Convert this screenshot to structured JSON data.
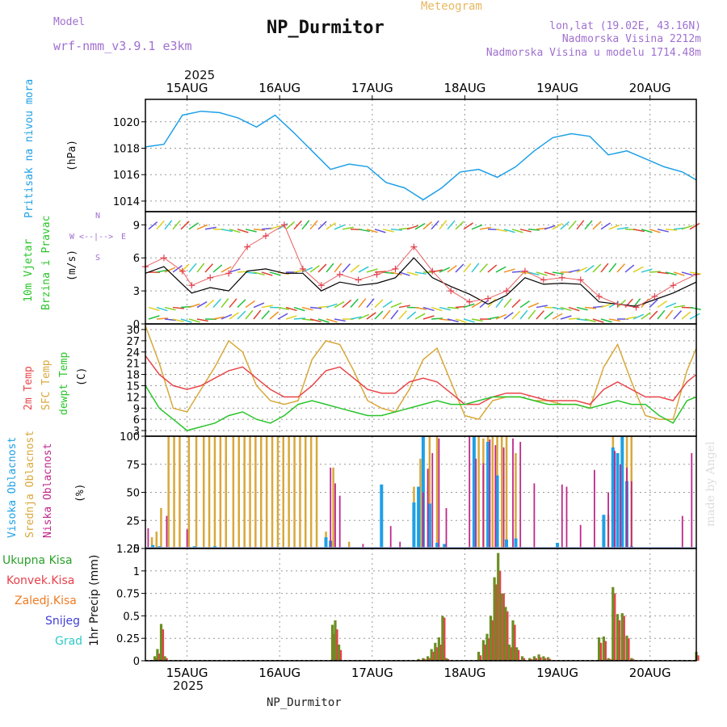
{
  "header": {
    "model_label": "Model",
    "model_name": "wrf-nmm_v3.9.1 e3km",
    "title": "NP_Durmitor",
    "meteogram": "Meteogram",
    "lonlat": "lon,lat (19.02E, 43.16N)",
    "altitude": "Nadmorska Visina 2212m",
    "model_altitude": "Nadmorska Visina u modelu 1714.48m",
    "year": "2025",
    "footer": "NP_Durmitor",
    "watermark": "made by Angel"
  },
  "colors": {
    "pressure": "#1ea0e6",
    "temp2m": "#e8454a",
    "sfc": "#d8a83a",
    "dewpt": "#2ac42a",
    "ukupna": "#2aa02a",
    "konvek": "#e8404a",
    "zaledj": "#f07a20",
    "snijeg": "#4040d8",
    "grad": "#30c8c8",
    "visoka": "#1ea0e6",
    "srednja": "#d8a83a",
    "niska": "#c0288a",
    "wind_legend": "#a070d0"
  },
  "chart_data": [
    {
      "id": "pressure",
      "type": "line",
      "ylabel": "Pritisak na nivou mora",
      "unit": "(hPa)",
      "ylim": [
        1013.2,
        1021.7
      ],
      "yticks": [
        1014,
        1016,
        1018,
        1020
      ],
      "x_range_days": [
        14.55,
        20.5
      ],
      "x": [
        14.55,
        14.75,
        14.95,
        15.15,
        15.35,
        15.55,
        15.75,
        15.95,
        16.15,
        16.35,
        16.55,
        16.75,
        16.95,
        17.15,
        17.35,
        17.55,
        17.75,
        17.95,
        18.15,
        18.35,
        18.55,
        18.75,
        18.95,
        19.15,
        19.35,
        19.55,
        19.75,
        19.95,
        20.15,
        20.35,
        20.5
      ],
      "series": [
        {
          "name": "Pressure",
          "values": [
            1018.1,
            1018.3,
            1020.5,
            1020.8,
            1020.7,
            1020.3,
            1019.6,
            1020.5,
            1019.2,
            1017.8,
            1016.4,
            1016.8,
            1016.6,
            1015.4,
            1015.0,
            1014.1,
            1015.0,
            1016.2,
            1016.4,
            1015.8,
            1016.6,
            1017.8,
            1018.8,
            1019.1,
            1018.9,
            1017.5,
            1017.8,
            1017.2,
            1016.6,
            1016.2,
            1015.6
          ]
        }
      ]
    },
    {
      "id": "wind",
      "type": "line",
      "ylabel": "10m Vjetar",
      "ylabel2": "Brzina i Pravac",
      "unit": "(m/s)",
      "compass": {
        "n": "N",
        "s": "S",
        "w": "W",
        "e": "E"
      },
      "ylim": [
        0,
        10.2
      ],
      "yticks": [
        0,
        3,
        6,
        9
      ],
      "x": [
        14.55,
        14.75,
        14.95,
        15.05,
        15.25,
        15.45,
        15.65,
        15.85,
        16.05,
        16.25,
        16.45,
        16.65,
        16.85,
        17.05,
        17.25,
        17.45,
        17.65,
        17.85,
        18.05,
        18.25,
        18.45,
        18.65,
        18.85,
        19.05,
        19.25,
        19.45,
        19.65,
        19.85,
        20.05,
        20.25,
        20.5
      ],
      "series": [
        {
          "name": "Mean wind",
          "values": [
            4.6,
            5.2,
            3.6,
            2.8,
            3.3,
            3.0,
            4.8,
            5.0,
            4.6,
            4.6,
            3.0,
            3.8,
            3.5,
            3.7,
            4.2,
            6.0,
            4.2,
            3.4,
            2.7,
            1.8,
            2.6,
            4.2,
            3.6,
            3.7,
            3.6,
            2.0,
            1.8,
            1.6,
            2.2,
            2.8,
            3.8
          ]
        },
        {
          "name": "Gusts",
          "values": [
            5.2,
            6.0,
            4.8,
            3.5,
            4.2,
            4.6,
            7.0,
            8.0,
            9.0,
            5.0,
            3.5,
            4.5,
            4.0,
            4.5,
            5.0,
            7.0,
            4.8,
            3.0,
            2.0,
            2.3,
            3.0,
            4.8,
            4.0,
            4.2,
            4.0,
            2.5,
            1.8,
            1.5,
            2.5,
            3.5,
            4.5
          ]
        }
      ],
      "levels_ms": [
        0,
        1.5,
        4.7,
        8.6
      ]
    },
    {
      "id": "temperature",
      "type": "line",
      "ylabel": "2m Temp",
      "ylabel2": "SFC Temp",
      "ylabel3": "dewpt Temp",
      "unit": "(C)",
      "ylim": [
        1.5,
        31.5
      ],
      "yticks": [
        3,
        6,
        9,
        12,
        15,
        18,
        21,
        24,
        27,
        30
      ],
      "x": [
        14.55,
        14.7,
        14.85,
        15.0,
        15.15,
        15.3,
        15.45,
        15.6,
        15.75,
        15.9,
        16.05,
        16.2,
        16.35,
        16.5,
        16.65,
        16.8,
        16.95,
        17.1,
        17.25,
        17.4,
        17.55,
        17.7,
        17.85,
        18.0,
        18.15,
        18.3,
        18.45,
        18.6,
        18.75,
        18.9,
        19.05,
        19.2,
        19.35,
        19.5,
        19.65,
        19.8,
        19.95,
        20.1,
        20.25,
        20.4,
        20.5
      ],
      "series": [
        {
          "name": "2m Temp",
          "values": [
            23,
            18,
            15,
            14,
            15,
            17,
            19,
            20,
            17,
            14,
            12,
            12,
            15,
            19,
            20,
            17,
            14,
            13,
            13,
            16,
            17,
            16,
            13,
            10,
            10,
            12,
            13,
            13,
            12,
            11,
            11,
            11,
            10,
            14,
            16,
            14,
            12,
            12,
            11,
            16,
            18
          ]
        },
        {
          "name": "SFC Temp",
          "values": [
            31,
            21,
            9,
            8,
            14,
            20,
            27,
            24,
            15,
            11,
            10,
            11,
            22,
            27,
            26,
            19,
            11,
            9,
            8,
            14,
            22,
            25,
            16,
            7,
            6,
            11,
            12,
            12,
            11,
            11,
            10,
            10,
            9,
            20,
            26,
            16,
            7,
            6,
            6,
            19,
            25
          ]
        },
        {
          "name": "dewpt Temp",
          "values": [
            15,
            9,
            6,
            3,
            4,
            5,
            7,
            8,
            6,
            5,
            7,
            10,
            11,
            10,
            9,
            8,
            7,
            7,
            8,
            9,
            10,
            11,
            10,
            10,
            11,
            12,
            12,
            12,
            11,
            10,
            10,
            10,
            9,
            10,
            11,
            10,
            10,
            7,
            5,
            11,
            12
          ]
        }
      ]
    },
    {
      "id": "clouds",
      "type": "bar",
      "ylabel": "Visoka Oblacnost",
      "ylabel2": "Srednja Oblacnost",
      "ylabel3": "Niska Oblacnost",
      "unit": "(%)",
      "ylim": [
        0,
        100
      ],
      "yticks": [
        0,
        25,
        50,
        75,
        100
      ],
      "series": [
        {
          "name": "Visoka",
          "x": [
            14.63,
            14.7,
            15.08,
            15.3,
            16.5,
            16.55,
            17.1,
            17.45,
            17.5,
            17.55,
            17.62,
            17.7,
            17.78,
            18.1,
            18.25,
            18.35,
            18.45,
            18.55,
            19.0,
            19.5,
            19.6,
            19.65,
            19.7,
            19.75,
            19.8
          ],
          "values": [
            3,
            2,
            2,
            2,
            10,
            7,
            57,
            41,
            55,
            100,
            40,
            5,
            4,
            100,
            95,
            65,
            8,
            9,
            5,
            30,
            90,
            85,
            100,
            60,
            2
          ]
        },
        {
          "name": "Srednja",
          "x": [
            14.62,
            14.67,
            14.72,
            14.8,
            14.86,
            14.92,
            15.02,
            15.1,
            15.18,
            15.24,
            15.3,
            15.36,
            15.42,
            15.5,
            15.56,
            15.62,
            15.68,
            15.74,
            15.8,
            15.86,
            15.92,
            15.98,
            16.04,
            16.1,
            16.16,
            16.22,
            16.28,
            16.34,
            16.4,
            16.5,
            16.58,
            16.75,
            17.45,
            17.52,
            17.62,
            17.7,
            18.1,
            18.15,
            18.2,
            18.25,
            18.3,
            18.35,
            18.4,
            18.45,
            18.55,
            19.55,
            19.6,
            19.7,
            19.75,
            19.8
          ],
          "values": [
            10,
            15,
            36,
            100,
            100,
            100,
            100,
            100,
            100,
            100,
            100,
            100,
            100,
            100,
            100,
            100,
            100,
            100,
            100,
            100,
            100,
            100,
            100,
            100,
            100,
            100,
            100,
            100,
            100,
            15,
            72,
            6,
            55,
            80,
            100,
            100,
            100,
            100,
            98,
            100,
            100,
            100,
            100,
            100,
            85,
            30,
            100,
            100,
            100,
            100
          ]
        },
        {
          "name": "Niska",
          "x": [
            14.58,
            14.78,
            15.0,
            16.55,
            16.6,
            16.65,
            16.9,
            17.2,
            17.3,
            17.55,
            17.6,
            17.65,
            17.72,
            17.8,
            18.05,
            18.12,
            18.2,
            18.27,
            18.33,
            18.42,
            18.52,
            18.6,
            18.75,
            19.05,
            19.1,
            19.25,
            19.4,
            19.55,
            19.62,
            19.68,
            19.75,
            19.8,
            20.35,
            20.45
          ],
          "values": [
            18,
            29,
            17,
            72,
            58,
            47,
            4,
            20,
            6,
            50,
            71,
            85,
            98,
            36,
            100,
            80,
            76,
            97,
            92,
            90,
            98,
            95,
            58,
            57,
            55,
            21,
            70,
            50,
            87,
            75,
            72,
            60,
            29,
            85
          ]
        }
      ]
    },
    {
      "id": "precip",
      "type": "bar",
      "ylabel": "1hr Precip (mm)",
      "legend": [
        "Ukupna Kisa",
        "Konvek.Kisa",
        "Zaledj.Kisa",
        "Snijeg",
        "Grad"
      ],
      "ylim": [
        0,
        1.25
      ],
      "yticks": [
        0,
        0.25,
        0.5,
        0.75,
        1,
        1.25
      ],
      "ytick_labels": [
        "0",
        "0.25",
        "0.5",
        "0.75",
        "1",
        "1.25"
      ],
      "x": [
        14.65,
        14.68,
        14.72,
        14.76,
        16.57,
        16.6,
        16.64,
        17.5,
        17.55,
        17.6,
        17.64,
        17.68,
        17.72,
        17.76,
        17.8,
        18.15,
        18.2,
        18.24,
        18.28,
        18.32,
        18.36,
        18.4,
        18.44,
        18.48,
        18.52,
        18.56,
        18.62,
        18.7,
        18.75,
        18.8,
        18.85,
        18.9,
        19.45,
        19.5,
        19.55,
        19.6,
        19.65,
        19.7,
        19.75,
        19.8,
        20.5
      ],
      "series": [
        {
          "name": "Ukupna Kisa",
          "values": [
            0.05,
            0.13,
            0.41,
            0.05,
            0.4,
            0.45,
            0.18,
            0.02,
            0.03,
            0.05,
            0.13,
            0.2,
            0.26,
            0.5,
            0.03,
            0.1,
            0.23,
            0.3,
            0.5,
            0.93,
            1.2,
            0.75,
            0.6,
            0.18,
            0.45,
            0.15,
            0.05,
            0.03,
            0.05,
            0.07,
            0.05,
            0.04,
            0.26,
            0.27,
            0.03,
            0.82,
            0.52,
            0.53,
            0.28,
            0.03,
            0.1
          ]
        },
        {
          "name": "Konvek.Kisa",
          "values": [
            0.03,
            0.08,
            0.35,
            0.03,
            0.3,
            0.35,
            0.12,
            0.01,
            0.02,
            0.03,
            0.1,
            0.15,
            0.18,
            0.48,
            0.02,
            0.06,
            0.18,
            0.25,
            0.45,
            0.85,
            1.0,
            0.75,
            0.55,
            0.15,
            0.4,
            0.12,
            0.03,
            0.02,
            0.03,
            0.04,
            0.03,
            0.02,
            0.2,
            0.22,
            0.02,
            0.75,
            0.45,
            0.5,
            0.25,
            0.02,
            0.06
          ]
        }
      ]
    }
  ],
  "time_axis": {
    "labels": [
      "15AUG",
      "16AUG",
      "17AUG",
      "18AUG",
      "19AUG",
      "20AUG"
    ],
    "year": "2025"
  }
}
